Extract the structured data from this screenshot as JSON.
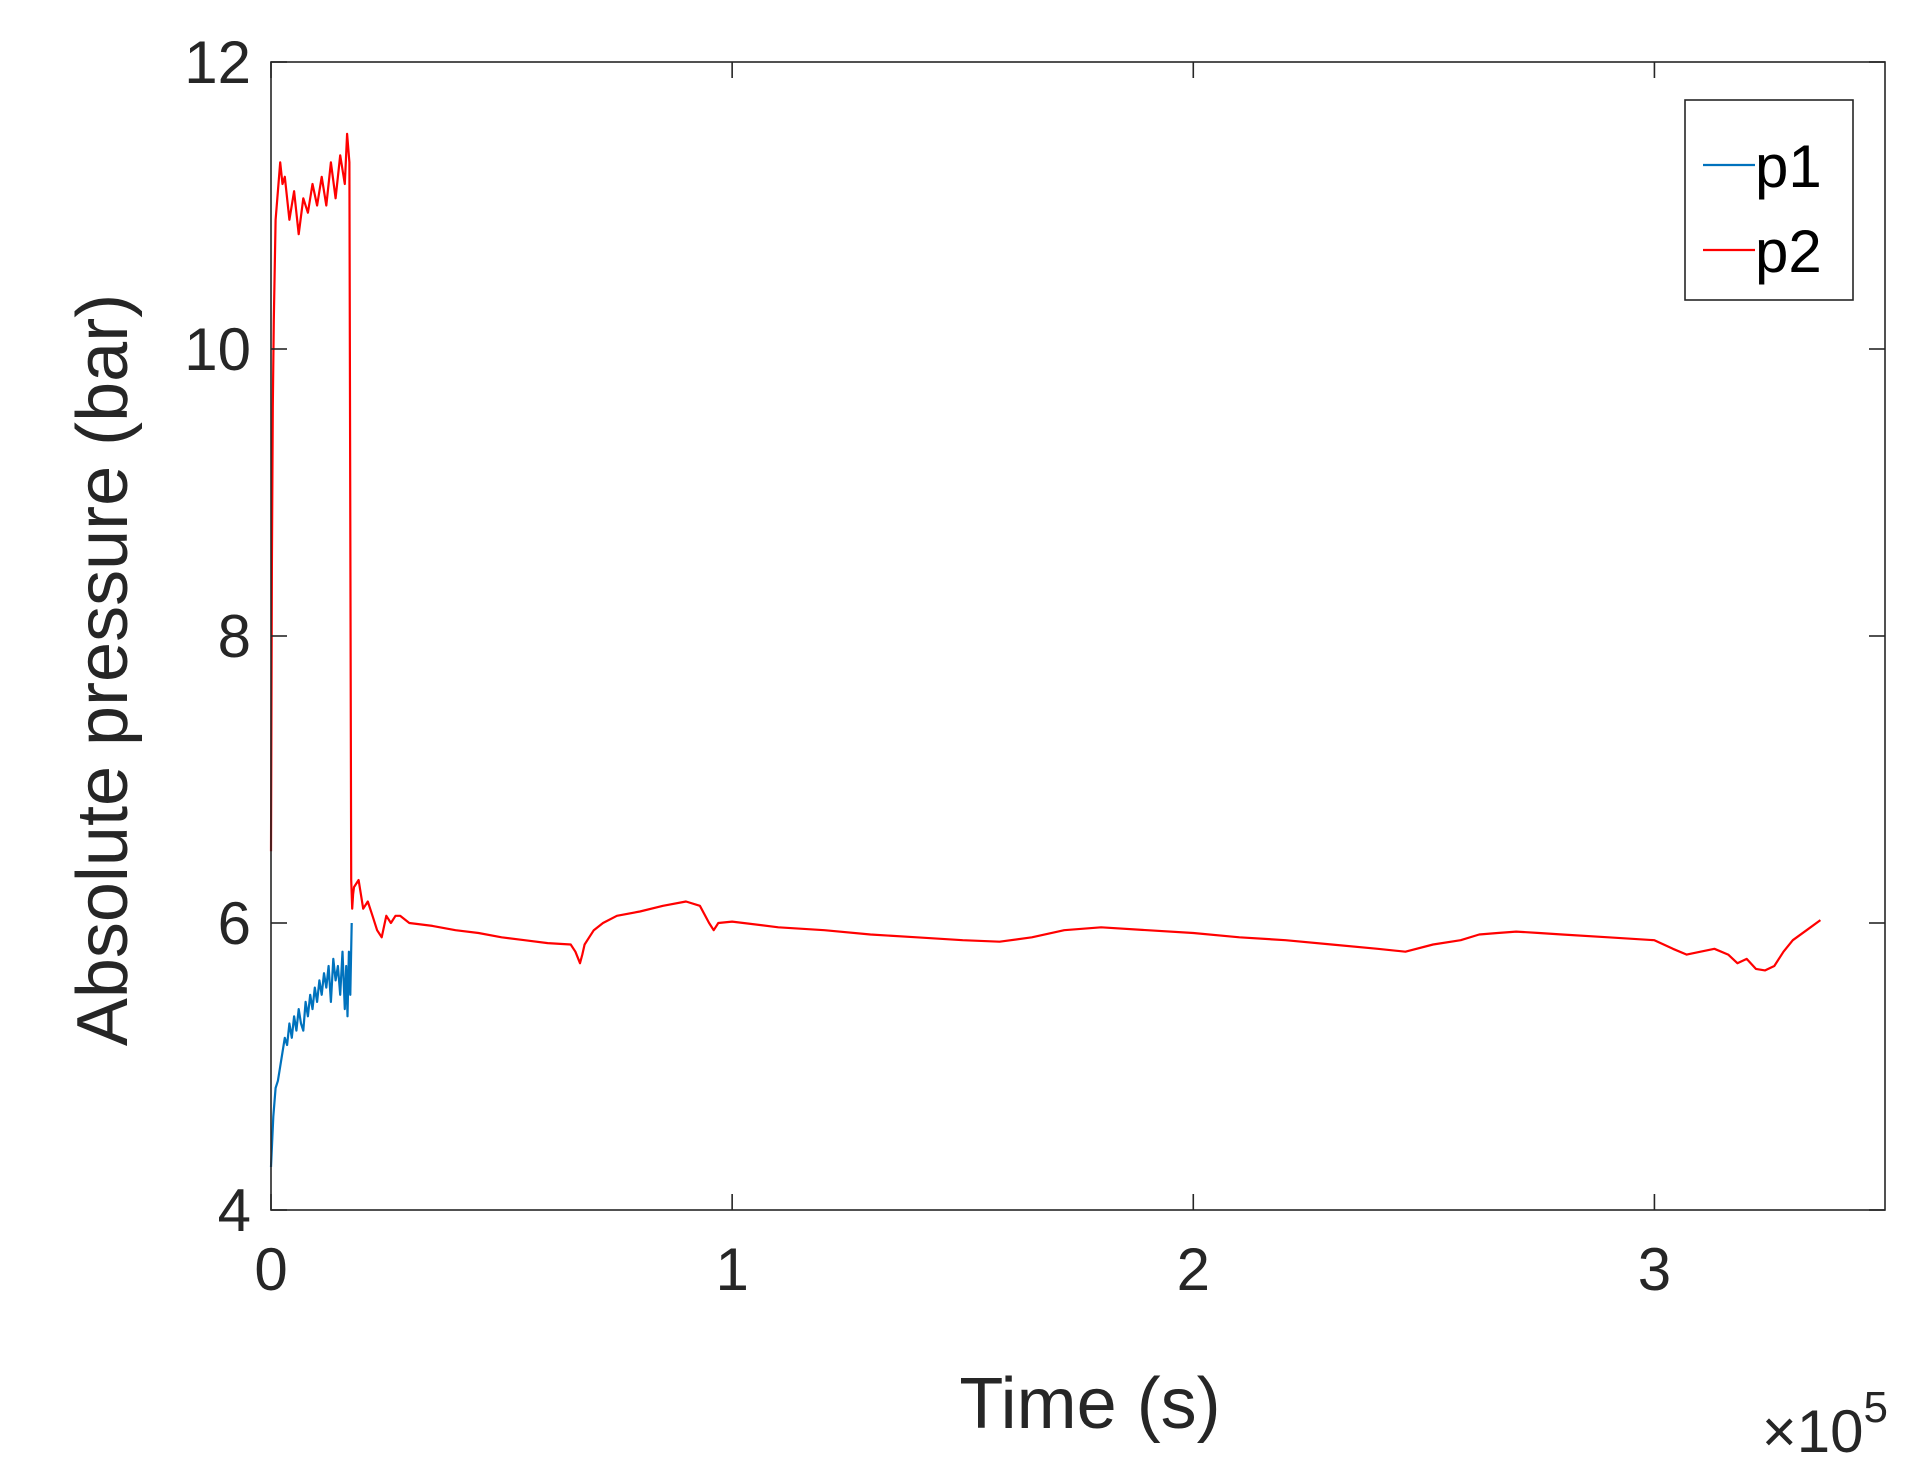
{
  "chart_data": {
    "type": "line",
    "title": "",
    "xlabel": "Time (s)",
    "ylabel": "Absolute pressure (bar)",
    "x_exponent_label": "×10",
    "x_exponent_power": "5",
    "x_scale": 100000,
    "xlim": [
      0,
      3.5
    ],
    "ylim": [
      4,
      12
    ],
    "x_ticks": [
      0,
      1,
      2,
      3
    ],
    "x_tick_labels": [
      "0",
      "1",
      "2",
      "3"
    ],
    "y_ticks": [
      4,
      6,
      8,
      10,
      12
    ],
    "y_tick_labels": [
      "4",
      "6",
      "8",
      "10",
      "12"
    ],
    "grid": false,
    "legend_position": "top-right",
    "series": [
      {
        "name": "p1",
        "color": "#0072BD",
        "x": [
          0.0,
          0.005,
          0.01,
          0.015,
          0.02,
          0.025,
          0.03,
          0.035,
          0.04,
          0.045,
          0.05,
          0.055,
          0.06,
          0.065,
          0.07,
          0.075,
          0.08,
          0.085,
          0.09,
          0.095,
          0.1,
          0.105,
          0.11,
          0.115,
          0.12,
          0.125,
          0.13,
          0.135,
          0.14,
          0.145,
          0.15,
          0.155,
          0.16,
          0.163,
          0.166,
          0.169,
          0.172,
          0.175
        ],
        "y": [
          4.3,
          4.65,
          4.85,
          4.9,
          5.0,
          5.1,
          5.2,
          5.15,
          5.3,
          5.2,
          5.35,
          5.25,
          5.4,
          5.3,
          5.25,
          5.45,
          5.35,
          5.5,
          5.4,
          5.55,
          5.45,
          5.6,
          5.5,
          5.65,
          5.55,
          5.7,
          5.45,
          5.75,
          5.6,
          5.7,
          5.5,
          5.8,
          5.4,
          5.7,
          5.35,
          5.8,
          5.5,
          6.0
        ]
      },
      {
        "name": "p2",
        "color": "#FF0000",
        "x": [
          0.0,
          0.002,
          0.004,
          0.006,
          0.01,
          0.015,
          0.02,
          0.025,
          0.03,
          0.04,
          0.05,
          0.06,
          0.07,
          0.08,
          0.09,
          0.1,
          0.11,
          0.12,
          0.13,
          0.14,
          0.15,
          0.16,
          0.165,
          0.17,
          0.174,
          0.176,
          0.178,
          0.18,
          0.19,
          0.2,
          0.21,
          0.22,
          0.23,
          0.24,
          0.25,
          0.26,
          0.27,
          0.28,
          0.3,
          0.35,
          0.4,
          0.45,
          0.5,
          0.55,
          0.6,
          0.65,
          0.66,
          0.67,
          0.675,
          0.68,
          0.69,
          0.7,
          0.72,
          0.75,
          0.8,
          0.85,
          0.9,
          0.93,
          0.95,
          0.96,
          0.97,
          1.0,
          1.1,
          1.2,
          1.3,
          1.4,
          1.5,
          1.58,
          1.65,
          1.72,
          1.8,
          1.9,
          2.0,
          2.1,
          2.2,
          2.3,
          2.4,
          2.46,
          2.52,
          2.58,
          2.62,
          2.66,
          2.7,
          2.75,
          2.8,
          2.9,
          3.0,
          3.04,
          3.07,
          3.1,
          3.13,
          3.16,
          3.18,
          3.2,
          3.22,
          3.24,
          3.26,
          3.28,
          3.3,
          3.33,
          3.36
        ],
        "y": [
          6.5,
          8.5,
          9.6,
          10.2,
          10.9,
          11.1,
          11.3,
          11.15,
          11.2,
          10.9,
          11.1,
          10.8,
          11.05,
          10.95,
          11.15,
          11.0,
          11.2,
          11.0,
          11.3,
          11.05,
          11.35,
          11.15,
          11.5,
          11.3,
          6.3,
          6.1,
          6.2,
          6.25,
          6.3,
          6.1,
          6.15,
          6.05,
          5.95,
          5.9,
          6.05,
          6.0,
          6.05,
          6.05,
          6.0,
          5.98,
          5.95,
          5.93,
          5.9,
          5.88,
          5.86,
          5.85,
          5.8,
          5.72,
          5.78,
          5.85,
          5.9,
          5.95,
          6.0,
          6.05,
          6.08,
          6.12,
          6.15,
          6.12,
          6.0,
          5.95,
          6.0,
          6.01,
          5.97,
          5.95,
          5.92,
          5.9,
          5.88,
          5.87,
          5.9,
          5.95,
          5.97,
          5.95,
          5.93,
          5.9,
          5.88,
          5.85,
          5.82,
          5.8,
          5.85,
          5.88,
          5.92,
          5.93,
          5.94,
          5.93,
          5.92,
          5.9,
          5.88,
          5.82,
          5.78,
          5.8,
          5.82,
          5.78,
          5.72,
          5.75,
          5.68,
          5.67,
          5.7,
          5.8,
          5.88,
          5.95,
          6.02
        ]
      }
    ]
  }
}
